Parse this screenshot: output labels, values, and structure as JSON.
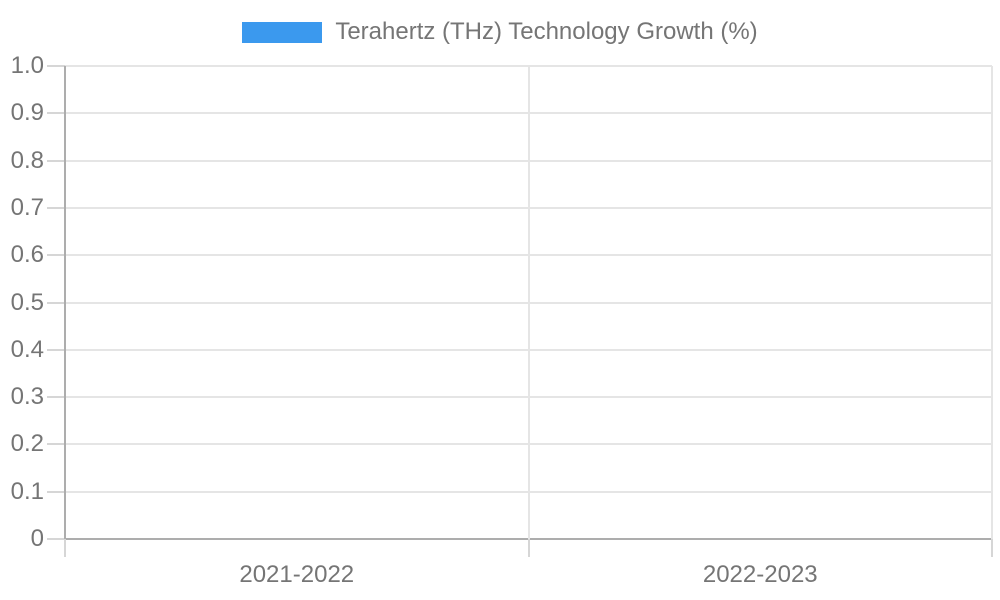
{
  "legend": {
    "swatch_color": "#3b99ee",
    "label": "Terahertz (THz) Technology Growth (%)"
  },
  "chart_data": {
    "type": "bar",
    "title": "Terahertz (THz) Technology Growth (%)",
    "categories": [
      "2021-2022",
      "2022-2023"
    ],
    "series": [
      {
        "name": "Terahertz (THz) Technology Growth (%)",
        "color": "#3b99ee",
        "values": [
          0,
          0
        ]
      }
    ],
    "xlabel": "",
    "ylabel": "",
    "ylim": [
      0,
      1
    ],
    "y_tick_step": 0.1,
    "y_tick_labels": [
      "1.0",
      "0.9",
      "0.8",
      "0.7",
      "0.6",
      "0.5",
      "0.4",
      "0.3",
      "0.2",
      "0.1",
      "0"
    ],
    "grid": true,
    "legend_position": "top-center"
  },
  "colors": {
    "grid_line": "#e5e5e5",
    "axis_line": "#adadad",
    "tick_stub": "#d6d6d6",
    "label_text": "#757575",
    "background": "#ffffff"
  }
}
